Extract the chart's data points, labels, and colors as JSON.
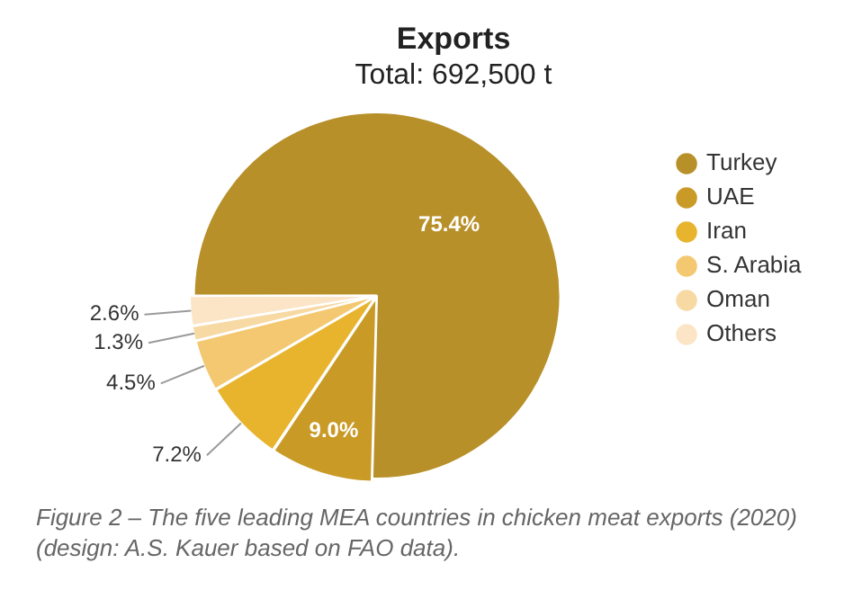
{
  "chart_data": {
    "type": "pie",
    "title": "Exports",
    "subtitle": "Total: 692,500 t",
    "categories": [
      "Turkey",
      "UAE",
      "Iran",
      "S. Arabia",
      "Oman",
      "Others"
    ],
    "values": [
      75.4,
      9.0,
      7.2,
      4.5,
      1.3,
      2.6
    ],
    "colors": [
      "#b8902a",
      "#c99a26",
      "#e8b42e",
      "#f3c870",
      "#f7d9a3",
      "#fbe5c6"
    ],
    "value_labels": [
      "75.4%",
      "9.0%",
      "7.2%",
      "4.5%",
      "1.3%",
      "2.6%"
    ],
    "legend": "right",
    "annotations": [
      "Figure 2 – The five leading MEA countries in chicken meat exports (2020) (design: A.S. Kauer based on FAO data)."
    ]
  }
}
